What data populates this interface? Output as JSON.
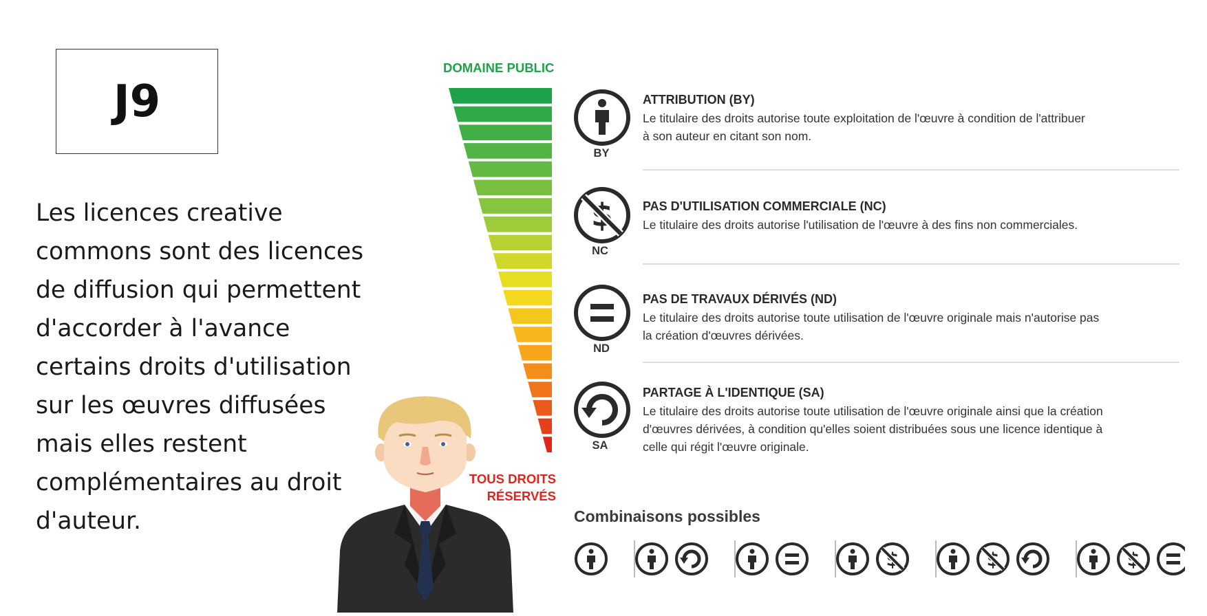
{
  "slide": {
    "day_label": "J9",
    "intro_lines": [
      "Les licences creative",
      "commons sont des licences",
      "de diffusion qui permettent",
      "d'accorder à l'avance",
      "certains droits d'utilisation",
      "sur les œuvres diffusées",
      "mais elles restent",
      "complémentaires au droit",
      "d'auteur."
    ]
  },
  "scale": {
    "top_label": "DOMAINE PUBLIC",
    "bottom_label_lines": [
      "TOUS DROITS",
      "RÉSERVÉS"
    ],
    "top_color": "#1ea34a",
    "bottom_color": "#e1251b"
  },
  "licenses": [
    {
      "abbr": "BY",
      "icon": "attribution-person-icon",
      "title": "ATTRIBUTION (BY)",
      "desc_lines": [
        "Le titulaire des droits autorise toute exploitation de l'œuvre à condition de l'attribuer",
        "à son auteur en citant son nom."
      ]
    },
    {
      "abbr": "NC",
      "icon": "no-dollar-icon",
      "title": "PAS D'UTILISATION COMMERCIALE (NC)",
      "desc_lines": [
        "Le titulaire des droits autorise l'utilisation de l'œuvre à des fins non commerciales."
      ]
    },
    {
      "abbr": "ND",
      "icon": "equals-icon",
      "title": "PAS DE TRAVAUX DÉRIVÉS (ND)",
      "desc_lines": [
        "Le titulaire des droits autorise toute utilisation de l'œuvre originale mais n'autorise pas",
        "la création d'œuvres dérivées."
      ]
    },
    {
      "abbr": "SA",
      "icon": "share-alike-icon",
      "title": "PARTAGE À L'IDENTIQUE (SA)",
      "desc_lines": [
        "Le titulaire des droits autorise toute utilisation de l'œuvre originale ainsi que la création",
        "d'œuvres dérivées, à condition qu'elles soient distribuées sous une licence identique à",
        "celle qui régit l'œuvre originale."
      ]
    }
  ],
  "combinations": {
    "title": "Combinaisons possibles",
    "groups": [
      [
        "BY"
      ],
      [
        "BY",
        "SA"
      ],
      [
        "BY",
        "ND"
      ],
      [
        "BY",
        "NC"
      ],
      [
        "BY",
        "NC",
        "SA"
      ],
      [
        "BY",
        "NC",
        "ND"
      ]
    ]
  }
}
